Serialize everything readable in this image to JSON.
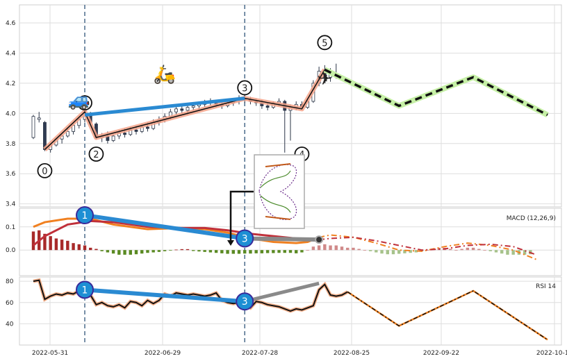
{
  "chart_data": {
    "type": "candlestick",
    "x_ticks": [
      "2022-05-31",
      "2022-06-29",
      "2022-07-28",
      "2022-08-25",
      "2022-09-22",
      "2022-10-14"
    ],
    "price_panel": {
      "ylim": [
        3.38,
        4.72
      ],
      "y_ticks": [
        3.4,
        3.6,
        3.8,
        4.0,
        4.2,
        4.4,
        4.6
      ],
      "candles": [
        {
          "o": 3.84,
          "h": 3.99,
          "l": 3.83,
          "c": 3.98
        },
        {
          "o": 3.96,
          "h": 4.01,
          "l": 3.94,
          "c": 3.97
        },
        {
          "o": 3.94,
          "h": 3.95,
          "l": 3.75,
          "c": 3.76
        },
        {
          "o": 3.76,
          "h": 3.8,
          "l": 3.74,
          "c": 3.79
        },
        {
          "o": 3.79,
          "h": 3.84,
          "l": 3.78,
          "c": 3.83
        },
        {
          "o": 3.83,
          "h": 3.86,
          "l": 3.8,
          "c": 3.85
        },
        {
          "o": 3.85,
          "h": 3.9,
          "l": 3.84,
          "c": 3.88
        },
        {
          "o": 3.88,
          "h": 3.93,
          "l": 3.86,
          "c": 3.92
        },
        {
          "o": 3.92,
          "h": 3.97,
          "l": 3.9,
          "c": 3.96
        },
        {
          "o": 3.96,
          "h": 4.02,
          "l": 3.94,
          "c": 4.0
        },
        {
          "o": 3.99,
          "h": 4.01,
          "l": 3.92,
          "c": 3.94
        },
        {
          "o": 3.93,
          "h": 3.94,
          "l": 3.83,
          "c": 3.84
        },
        {
          "o": 3.84,
          "h": 3.87,
          "l": 3.81,
          "c": 3.85
        },
        {
          "o": 3.85,
          "h": 3.88,
          "l": 3.8,
          "c": 3.82
        },
        {
          "o": 3.82,
          "h": 3.86,
          "l": 3.81,
          "c": 3.85
        },
        {
          "o": 3.85,
          "h": 3.89,
          "l": 3.83,
          "c": 3.87
        },
        {
          "o": 3.87,
          "h": 3.9,
          "l": 3.84,
          "c": 3.86
        },
        {
          "o": 3.86,
          "h": 3.91,
          "l": 3.85,
          "c": 3.89
        },
        {
          "o": 3.89,
          "h": 3.92,
          "l": 3.86,
          "c": 3.88
        },
        {
          "o": 3.88,
          "h": 3.93,
          "l": 3.87,
          "c": 3.91
        },
        {
          "o": 3.91,
          "h": 3.94,
          "l": 3.88,
          "c": 3.9
        },
        {
          "o": 3.9,
          "h": 3.96,
          "l": 3.89,
          "c": 3.94
        },
        {
          "o": 3.94,
          "h": 3.98,
          "l": 3.92,
          "c": 3.96
        },
        {
          "o": 3.96,
          "h": 4.0,
          "l": 3.94,
          "c": 3.98
        },
        {
          "o": 3.98,
          "h": 4.03,
          "l": 3.96,
          "c": 4.01
        },
        {
          "o": 4.01,
          "h": 4.05,
          "l": 3.99,
          "c": 4.03
        },
        {
          "o": 4.03,
          "h": 4.06,
          "l": 4.0,
          "c": 4.02
        },
        {
          "o": 4.02,
          "h": 4.05,
          "l": 3.99,
          "c": 4.04
        },
        {
          "o": 4.04,
          "h": 4.07,
          "l": 4.02,
          "c": 4.05
        },
        {
          "o": 4.05,
          "h": 4.08,
          "l": 4.02,
          "c": 4.06
        },
        {
          "o": 4.06,
          "h": 4.09,
          "l": 4.04,
          "c": 4.08
        },
        {
          "o": 4.08,
          "h": 4.1,
          "l": 4.05,
          "c": 4.07
        },
        {
          "o": 4.07,
          "h": 4.09,
          "l": 4.04,
          "c": 4.06
        },
        {
          "o": 4.06,
          "h": 4.08,
          "l": 4.03,
          "c": 4.05
        },
        {
          "o": 4.05,
          "h": 4.08,
          "l": 4.04,
          "c": 4.07
        },
        {
          "o": 4.07,
          "h": 4.1,
          "l": 4.05,
          "c": 4.09
        },
        {
          "o": 4.09,
          "h": 4.12,
          "l": 4.06,
          "c": 4.1
        },
        {
          "o": 4.1,
          "h": 4.12,
          "l": 4.07,
          "c": 4.09
        },
        {
          "o": 4.09,
          "h": 4.11,
          "l": 4.06,
          "c": 4.08
        },
        {
          "o": 4.08,
          "h": 4.1,
          "l": 4.05,
          "c": 4.07
        },
        {
          "o": 4.07,
          "h": 4.09,
          "l": 4.03,
          "c": 4.05
        },
        {
          "o": 4.05,
          "h": 4.07,
          "l": 4.02,
          "c": 4.04
        },
        {
          "o": 4.04,
          "h": 4.08,
          "l": 4.03,
          "c": 4.07
        },
        {
          "o": 4.07,
          "h": 4.1,
          "l": 4.05,
          "c": 4.08
        },
        {
          "o": 4.08,
          "h": 4.09,
          "l": 3.74,
          "c": 4.02
        },
        {
          "o": 4.02,
          "h": 4.06,
          "l": 3.82,
          "c": 4.04
        },
        {
          "o": 4.04,
          "h": 4.08,
          "l": 4.02,
          "c": 4.06
        },
        {
          "o": 4.06,
          "h": 4.08,
          "l": 4.03,
          "c": 4.04
        },
        {
          "o": 4.04,
          "h": 4.1,
          "l": 4.03,
          "c": 4.08
        },
        {
          "o": 4.08,
          "h": 4.22,
          "l": 4.07,
          "c": 4.2
        },
        {
          "o": 4.2,
          "h": 4.31,
          "l": 4.18,
          "c": 4.28
        },
        {
          "o": 4.28,
          "h": 4.32,
          "l": 4.22,
          "c": 4.24
        },
        {
          "o": 4.24,
          "h": 4.3,
          "l": 4.21,
          "c": 4.26
        },
        {
          "o": 4.26,
          "h": 4.33,
          "l": 4.23,
          "c": 4.25
        }
      ],
      "zigzag": [
        [
          2,
          3.76
        ],
        [
          9,
          4.01
        ],
        [
          11,
          3.84
        ],
        [
          37,
          4.1
        ],
        [
          47,
          4.03
        ],
        [
          51,
          4.29
        ]
      ],
      "projection": [
        [
          51,
          4.29
        ],
        [
          64,
          4.05
        ],
        [
          77,
          4.24
        ],
        [
          90,
          3.99
        ]
      ],
      "blue_line": [
        [
          9,
          3.99
        ],
        [
          37,
          4.1
        ]
      ],
      "pivot_labels": [
        {
          "label": "0",
          "i": 2,
          "y": 3.62
        },
        {
          "label": "1",
          "i": 9,
          "y": 4.07
        },
        {
          "label": "2",
          "i": 11,
          "y": 3.73
        },
        {
          "label": "3",
          "i": 37,
          "y": 4.17
        },
        {
          "label": "4",
          "i": 47,
          "y": 3.73
        },
        {
          "label": "5",
          "i": 51,
          "y": 4.47
        }
      ],
      "icons": [
        {
          "name": "car-icon",
          "glyph": "🚙",
          "i": 8,
          "y": 4.05
        },
        {
          "name": "scooter-icon",
          "glyph": "🛵",
          "i": 23,
          "y": 4.22
        },
        {
          "name": "airplane-icon",
          "glyph": "✈",
          "i": 51,
          "y": 4.19
        }
      ]
    },
    "macd_panel": {
      "label": "MACD (12,26,9)",
      "ylim": [
        -0.11,
        0.18
      ],
      "y_ticks": [
        0.0,
        0.1
      ],
      "histogram": [
        0.08,
        0.085,
        0.07,
        0.06,
        0.05,
        0.045,
        0.04,
        0.03,
        0.025,
        0.02,
        0.01,
        0.005,
        -0.005,
        -0.01,
        -0.015,
        -0.02,
        -0.02,
        -0.02,
        -0.018,
        -0.015,
        -0.012,
        -0.01,
        -0.008,
        -0.005,
        -0.002,
        0.002,
        0.004,
        0.004,
        -0.004,
        -0.006,
        -0.008,
        -0.01,
        -0.012,
        -0.014,
        -0.016,
        -0.016,
        -0.016,
        -0.015,
        -0.015,
        -0.014,
        -0.014,
        -0.013,
        -0.013,
        -0.012,
        -0.012,
        -0.012,
        -0.014,
        -0.01,
        0.0,
        0.015,
        0.02,
        0.025,
        0.02,
        0.02,
        0.015,
        0.01,
        0.01,
        0.005,
        0.0,
        -0.005,
        -0.01,
        -0.015,
        -0.018,
        -0.018,
        -0.016,
        -0.014,
        -0.012,
        -0.01,
        -0.005,
        0.0,
        0.005,
        0.01,
        0.01,
        0.005,
        0.0,
        0.005,
        0.01,
        0.01,
        0.005,
        0.0,
        -0.005,
        -0.01,
        -0.015,
        -0.02,
        -0.02,
        -0.02,
        -0.02,
        -0.018
      ],
      "macd_line": [
        [
          0,
          0.1
        ],
        [
          2,
          0.12
        ],
        [
          6,
          0.135
        ],
        [
          10,
          0.135
        ],
        [
          14,
          0.11
        ],
        [
          20,
          0.09
        ],
        [
          26,
          0.095
        ],
        [
          30,
          0.09
        ],
        [
          34,
          0.075
        ],
        [
          38,
          0.05
        ],
        [
          42,
          0.035
        ],
        [
          46,
          0.03
        ],
        [
          48,
          0.035
        ],
        [
          50,
          0.055
        ],
        [
          52,
          0.065
        ],
        [
          56,
          0.055
        ],
        [
          60,
          0.03
        ],
        [
          64,
          0.0
        ],
        [
          68,
          -0.005
        ],
        [
          72,
          0.015
        ],
        [
          76,
          0.03
        ],
        [
          80,
          0.02
        ],
        [
          84,
          0.0
        ],
        [
          88,
          -0.04
        ]
      ],
      "signal_line": [
        [
          0,
          0.02
        ],
        [
          2,
          0.06
        ],
        [
          6,
          0.11
        ],
        [
          10,
          0.125
        ],
        [
          14,
          0.12
        ],
        [
          20,
          0.1
        ],
        [
          26,
          0.095
        ],
        [
          30,
          0.095
        ],
        [
          34,
          0.085
        ],
        [
          38,
          0.07
        ],
        [
          42,
          0.06
        ],
        [
          46,
          0.05
        ],
        [
          48,
          0.045
        ],
        [
          50,
          0.045
        ],
        [
          52,
          0.05
        ],
        [
          56,
          0.055
        ],
        [
          60,
          0.04
        ],
        [
          64,
          0.02
        ],
        [
          68,
          0.0
        ],
        [
          72,
          0.005
        ],
        [
          76,
          0.02
        ],
        [
          80,
          0.025
        ],
        [
          84,
          0.015
        ],
        [
          88,
          -0.02
        ]
      ],
      "blue_line": [
        [
          9,
          0.15
        ],
        [
          37,
          0.05
        ]
      ],
      "gray_line": [
        [
          37,
          0.05
        ],
        [
          50,
          0.045
        ]
      ]
    },
    "rsi_panel": {
      "label": "RSI 14",
      "ylim": [
        20,
        84
      ],
      "y_ticks": [
        40,
        60,
        80
      ],
      "rsi": [
        80,
        81,
        63,
        66,
        68,
        67,
        69,
        68,
        71,
        73,
        67,
        58,
        60,
        57,
        56,
        58,
        55,
        61,
        60,
        57,
        62,
        59,
        62,
        68,
        66,
        69,
        68,
        67,
        68,
        67,
        66,
        67,
        69,
        62,
        60,
        59,
        60,
        58,
        55,
        61,
        60,
        58,
        57,
        56,
        54,
        52,
        54,
        53,
        55,
        57,
        72,
        77,
        67,
        66,
        67,
        70
      ],
      "rsi_projection": [
        [
          55,
          70
        ],
        [
          64,
          38
        ],
        [
          77,
          71
        ],
        [
          90,
          25
        ]
      ],
      "blue_line": [
        [
          9,
          72
        ],
        [
          37,
          61
        ]
      ],
      "gray_line": [
        [
          37,
          61
        ],
        [
          50,
          78
        ]
      ]
    },
    "markers": [
      {
        "label": "1",
        "i": 9,
        "panel": "macd",
        "y": 0.15
      },
      {
        "label": "3",
        "i": 37,
        "panel": "macd",
        "y": 0.05
      },
      {
        "label": "1",
        "i": 9,
        "panel": "rsi",
        "y": 72
      },
      {
        "label": "3",
        "i": 37,
        "panel": "rsi",
        "y": 61
      }
    ]
  }
}
